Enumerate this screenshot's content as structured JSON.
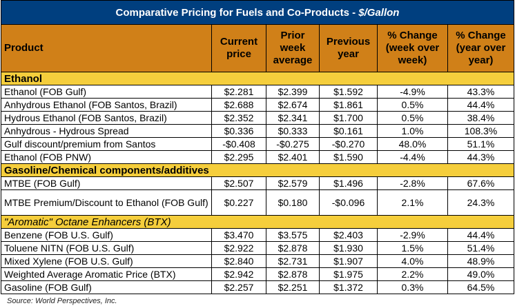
{
  "title": {
    "main": "Comparative Pricing for Fuels and Co-Products - ",
    "unit": "$/Gallon"
  },
  "colors": {
    "title_bg": "#003F7F",
    "header_bg": "#D08018",
    "section_bg": "#F5CE3C"
  },
  "columns": [
    "Product",
    "Current price",
    "Prior week average",
    "Previous year",
    "% Change (week over week)",
    "% Change (year over year)"
  ],
  "sections": [
    {
      "name": "Ethanol",
      "italic": false,
      "rows": [
        [
          "Ethanol (FOB Gulf)",
          "$2.281",
          "$2.399",
          "$1.592",
          "-4.9%",
          "43.3%"
        ],
        [
          "Anhydrous Ethanol (FOB Santos, Brazil)",
          "$2.688",
          "$2.674",
          "$1.861",
          "0.5%",
          "44.4%"
        ],
        [
          "Hydrous Ethanol (FOB Santos, Brazil)",
          "$2.352",
          "$2.341",
          "$1.700",
          "0.5%",
          "38.4%"
        ],
        [
          "Anhydrous - Hydrous Spread",
          "$0.336",
          "$0.333",
          "$0.161",
          "1.0%",
          "108.3%"
        ],
        [
          "Gulf discount/premium from Santos",
          "-$0.408",
          "-$0.275",
          "-$0.270",
          "48.0%",
          "51.1%"
        ],
        [
          "Ethanol (FOB PNW)",
          "$2.295",
          "$2.401",
          "$1.590",
          "-4.4%",
          "44.3%"
        ]
      ]
    },
    {
      "name": "Gasoline/Chemical components/additives",
      "italic": false,
      "rows": [
        [
          "MTBE (FOB Gulf)",
          "$2.507",
          "$2.579",
          "$1.496",
          "-2.8%",
          "67.6%"
        ],
        [
          "MTBE Premium/Discount to Ethanol (FOB Gulf)",
          "$0.227",
          "$0.180",
          "-$0.096",
          "2.1%",
          "24.3%"
        ]
      ]
    },
    {
      "name": "\"Aromatic\" Octane Enhancers (BTX)",
      "italic": true,
      "rows": [
        [
          "Benzene (FOB U.S. Gulf)",
          "$3.470",
          "$3.575",
          "$2.403",
          "-2.9%",
          "44.4%"
        ],
        [
          "Toluene NITN (FOB U.S. Gulf)",
          "$2.922",
          "$2.878",
          "$1.930",
          "1.5%",
          "51.4%"
        ],
        [
          "Mixed Xylene (FOB U.S. Gulf)",
          "$2.840",
          "$2.731",
          "$1.907",
          "4.0%",
          "48.9%"
        ],
        [
          "Weighted Average Aromatic Price (BTX)",
          "$2.942",
          "$2.878",
          "$1.975",
          "2.2%",
          "49.0%"
        ],
        [
          "Gasoline (FOB Gulf)",
          "$2.257",
          "$2.251",
          "$1.372",
          "0.3%",
          "64.5%"
        ]
      ]
    }
  ],
  "source": "Source: World Perspectives, Inc."
}
